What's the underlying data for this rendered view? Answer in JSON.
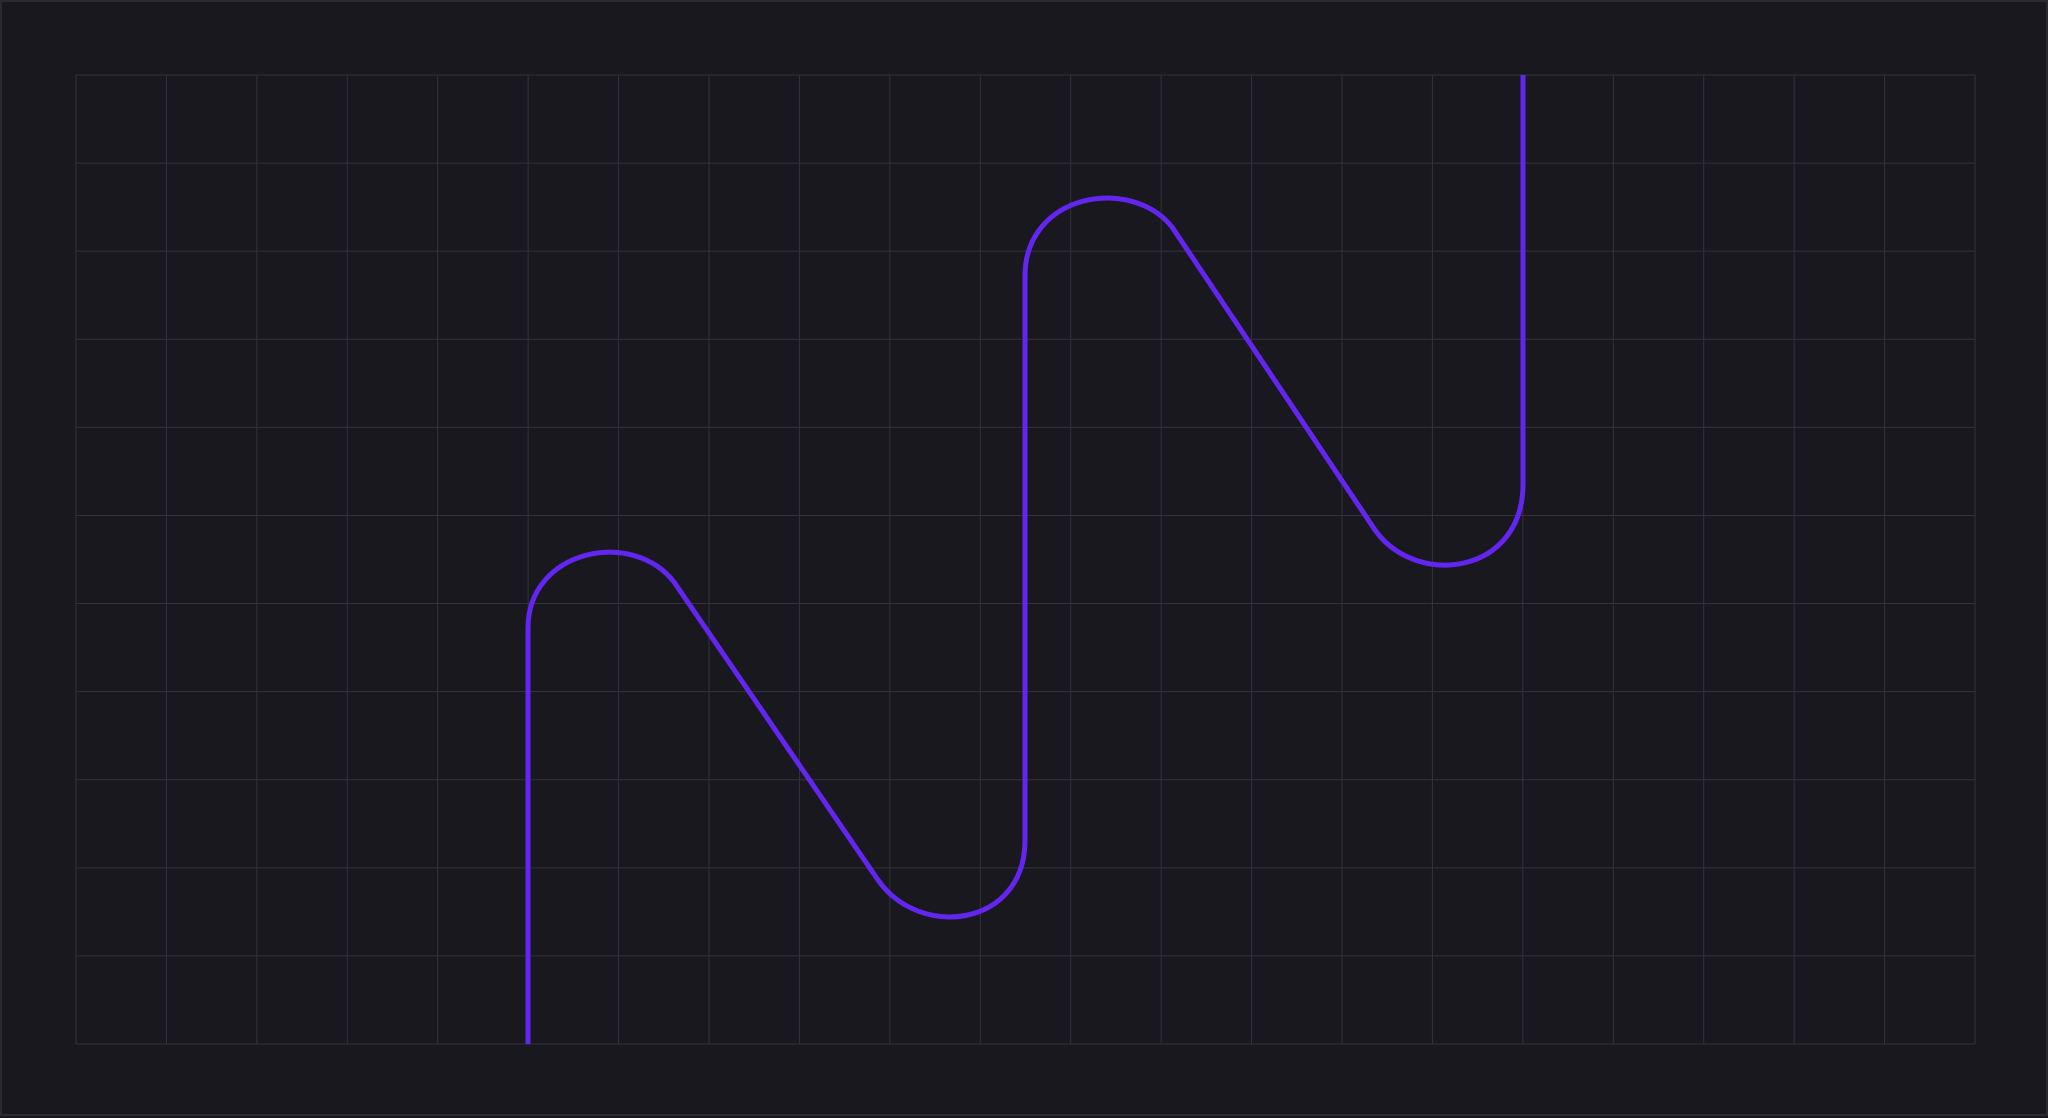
{
  "diagram": {
    "grid": {
      "columns": 21,
      "rows": 11
    },
    "colors": {
      "background": "#19181e",
      "frame_border": "#2a2a30",
      "grid_line": "#33323a",
      "path": "#6326f0"
    }
  }
}
